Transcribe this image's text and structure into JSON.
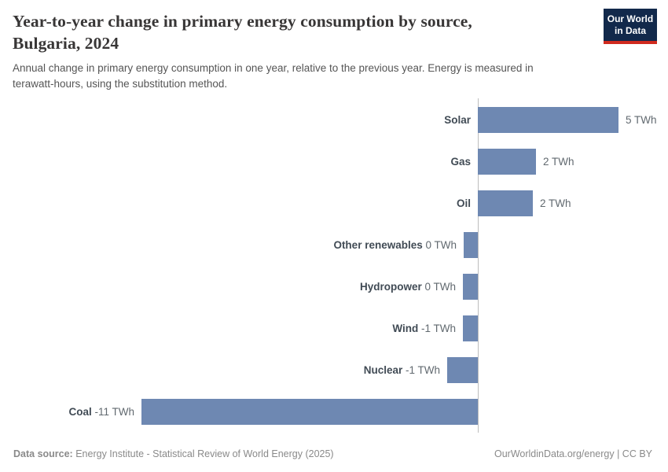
{
  "header": {
    "title": "Year-to-year change in primary energy consumption by source, Bulgaria, 2024",
    "subtitle": "Annual change in primary energy consumption in one year, relative to the previous year. Energy is measured in terawatt-hours, using the substitution method.",
    "logo": {
      "line1": "Our World",
      "line2": "in Data",
      "bg_color": "#12294b",
      "accent_color": "#d02a1e"
    }
  },
  "chart_data": {
    "type": "bar",
    "orientation": "horizontal",
    "title": "Year-to-year change in primary energy consumption by source, Bulgaria, 2024",
    "unit": "TWh",
    "categories": [
      "Solar",
      "Gas",
      "Oil",
      "Other renewables",
      "Hydropower",
      "Wind",
      "Nuclear",
      "Coal"
    ],
    "values": [
      4.6,
      1.9,
      1.8,
      -0.45,
      -0.5,
      -0.5,
      -1.0,
      -11.0
    ],
    "value_labels": [
      "5 TWh",
      "2 TWh",
      "2 TWh",
      "0 TWh",
      "0 TWh",
      "-1 TWh",
      "-1 TWh",
      "-11 TWh"
    ],
    "xlim": [
      -11.5,
      6
    ],
    "grid": false,
    "legend": "none",
    "bar_color": "#6e88b2",
    "axis_color": "#bdbdbd"
  },
  "footer": {
    "datasource_label": "Data source:",
    "datasource_text": " Energy Institute - Statistical Review of World Energy (2025)",
    "credit": "OurWorldinData.org/energy | CC BY"
  }
}
